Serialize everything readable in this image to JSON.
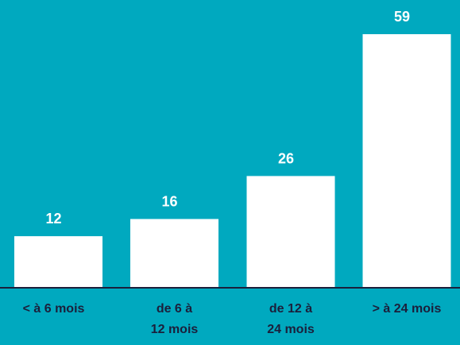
{
  "chart_data": {
    "type": "bar",
    "categories": [
      "< à 6 mois",
      "de 6 à 12 mois",
      "de 12 à 24 mois",
      "> à 24 mois"
    ],
    "values": [
      12,
      16,
      26,
      59
    ],
    "color": "#ffffff",
    "background": "#00a9bf"
  }
}
